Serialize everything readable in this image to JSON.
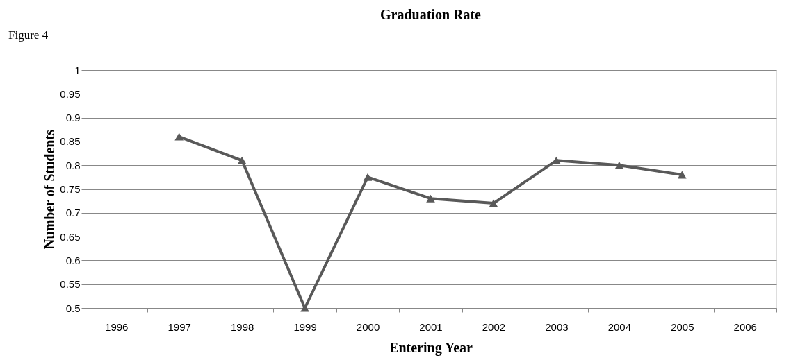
{
  "chart_data": {
    "type": "line",
    "title": "Graduation Rate",
    "xlabel": "Entering Year",
    "ylabel": "Number of Students",
    "annotations": [
      "Figure 4"
    ],
    "categories": [
      "1996",
      "1997",
      "1998",
      "1999",
      "2000",
      "2001",
      "2002",
      "2003",
      "2004",
      "2005",
      "2006"
    ],
    "series": [
      {
        "color": "#595959",
        "values": [
          null,
          0.86,
          0.81,
          0.5,
          0.775,
          0.73,
          0.72,
          0.81,
          0.8,
          0.78,
          null
        ]
      }
    ],
    "ylim": [
      0.5,
      1
    ],
    "yticks": [
      0.5,
      0.55,
      0.6,
      0.65,
      0.7,
      0.75,
      0.8,
      0.85,
      0.9,
      0.95,
      1
    ],
    "grid": "y",
    "marker": "triangle",
    "line_style": "solid"
  }
}
